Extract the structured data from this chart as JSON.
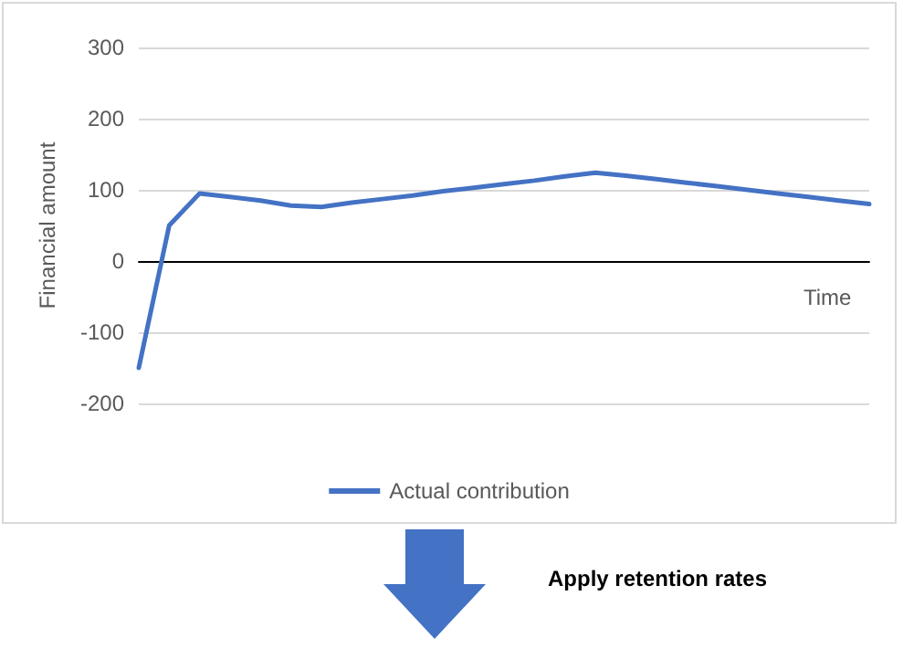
{
  "chart_data": {
    "type": "line",
    "xlabel": "Time",
    "ylabel": "Financial amount",
    "categories": [
      null,
      null,
      null,
      null,
      null,
      null,
      null,
      null,
      null,
      null,
      null,
      null,
      null,
      null,
      null,
      null,
      null,
      null,
      null,
      null,
      null,
      null,
      null,
      null,
      null
    ],
    "series": [
      {
        "name": "Actual contribution",
        "color": "#4472c4",
        "values": [
          -150,
          50,
          95,
          90,
          85,
          78,
          76,
          82,
          87,
          92,
          98,
          103,
          108,
          113,
          119,
          124,
          120,
          115,
          110,
          105,
          100,
          95,
          90,
          85,
          80
        ]
      }
    ],
    "ylim": [
      -200,
      300
    ],
    "yticks": [
      -200,
      -100,
      0,
      100,
      200,
      300
    ],
    "grid": "y",
    "legend": "bottom",
    "marker": "none",
    "line_style": "solid",
    "tick_labels": "y",
    "annotations": [
      "Apply retention rates"
    ]
  }
}
